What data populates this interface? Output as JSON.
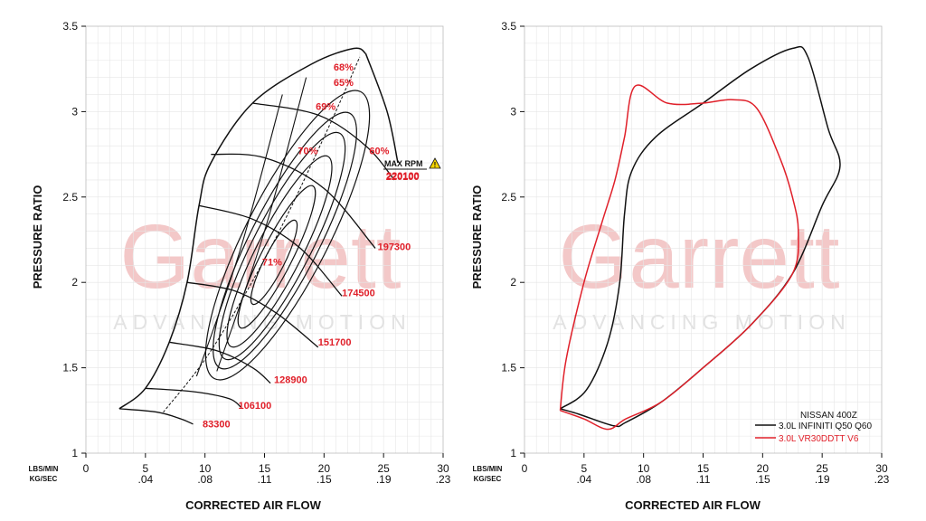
{
  "watermark": {
    "brand": "Garrett",
    "tagline": "ADVANCING MOTION"
  },
  "chart_data": [
    {
      "type": "line",
      "title": "",
      "xlabel": "CORRECTED AIR FLOW",
      "ylabel": "PRESSURE RATIO",
      "x_unit_primary": "LBS/MIN",
      "x_unit_secondary": "KG/SEC",
      "xlim": [
        0,
        30
      ],
      "ylim": [
        1,
        3.5
      ],
      "x_ticks": [
        0,
        5,
        10,
        15,
        20,
        25,
        30
      ],
      "x_ticks_secondary": [
        "",
        ".04",
        ".08",
        ".11",
        ".15",
        ".19",
        ".23"
      ],
      "y_ticks": [
        1,
        1.5,
        2,
        2.5,
        3,
        3.5
      ],
      "y_tick_labels": [
        "1",
        "1.5",
        "2",
        "2.5",
        "3",
        "3.5"
      ],
      "grid": true,
      "surge_line": [
        [
          2.8,
          1.26
        ],
        [
          5.0,
          1.38
        ],
        [
          7.0,
          1.65
        ],
        [
          8.5,
          2.0
        ],
        [
          9.5,
          2.45
        ],
        [
          10.5,
          2.7
        ],
        [
          14.0,
          3.05
        ],
        [
          19.0,
          3.28
        ],
        [
          22.5,
          3.37
        ],
        [
          23.5,
          3.34
        ]
      ],
      "choke_line": [
        [
          23.5,
          3.34
        ],
        [
          25.3,
          3.0
        ],
        [
          26.2,
          2.7
        ]
      ],
      "speed_lines": [
        {
          "label": "83300",
          "points": [
            [
              2.8,
              1.26
            ],
            [
              6.0,
              1.24
            ],
            [
              8.0,
              1.2
            ],
            [
              9.0,
              1.17
            ]
          ],
          "label_at": [
            9.8,
            1.15
          ]
        },
        {
          "label": "106100",
          "points": [
            [
              5.0,
              1.38
            ],
            [
              9.0,
              1.36
            ],
            [
              12.0,
              1.32
            ],
            [
              13.0,
              1.27
            ]
          ],
          "label_at": [
            12.8,
            1.26
          ]
        },
        {
          "label": "128900",
          "points": [
            [
              7.0,
              1.65
            ],
            [
              11.0,
              1.6
            ],
            [
              14.0,
              1.5
            ],
            [
              15.5,
              1.41
            ]
          ],
          "label_at": [
            15.8,
            1.41
          ]
        },
        {
          "label": "151700",
          "points": [
            [
              8.5,
              2.0
            ],
            [
              12.5,
              1.95
            ],
            [
              16.0,
              1.82
            ],
            [
              19.5,
              1.62
            ]
          ],
          "label_at": [
            19.5,
            1.63
          ]
        },
        {
          "label": "174500",
          "points": [
            [
              9.5,
              2.45
            ],
            [
              14.0,
              2.37
            ],
            [
              18.0,
              2.2
            ],
            [
              21.5,
              1.92
            ]
          ],
          "label_at": [
            21.5,
            1.92
          ]
        },
        {
          "label": "197300",
          "points": [
            [
              10.5,
              2.75
            ],
            [
              15.0,
              2.73
            ],
            [
              20.0,
              2.55
            ],
            [
              24.3,
              2.2
            ]
          ],
          "label_at": [
            24.5,
            2.19
          ]
        },
        {
          "label": "220100",
          "points": [
            [
              14.0,
              3.05
            ],
            [
              19.5,
              2.98
            ],
            [
              23.5,
              2.8
            ],
            [
              25.9,
              2.6
            ]
          ],
          "label_at": [
            25.2,
            2.6
          ]
        }
      ],
      "efficiency_islands": [
        {
          "label": "71%",
          "center": [
            18.0,
            1.95
          ],
          "label_at": [
            14.8,
            2.1
          ]
        },
        {
          "label": "70%",
          "center": [
            18.0,
            2.15
          ],
          "label_at": [
            17.8,
            2.75
          ]
        },
        {
          "label": "69%",
          "center": [
            18.0,
            2.3
          ],
          "label_at": [
            19.3,
            3.01
          ]
        },
        {
          "label": "65%",
          "center": [
            18.0,
            2.4
          ],
          "label_at": [
            20.8,
            3.15
          ]
        },
        {
          "label": "68%",
          "center": [
            18.0,
            2.45
          ],
          "label_at": [
            20.8,
            3.24
          ]
        },
        {
          "label": "60%",
          "center": [
            18.0,
            2.5
          ],
          "label_at": [
            23.8,
            2.75
          ]
        }
      ],
      "max_rpm": {
        "label": "MAX RPM",
        "value": "220100"
      }
    },
    {
      "type": "line",
      "title": "",
      "xlabel": "CORRECTED AIR FLOW",
      "ylabel": "PRESSURE RATIO",
      "x_unit_primary": "LBS/MIN",
      "x_unit_secondary": "KG/SEC",
      "xlim": [
        0,
        30
      ],
      "ylim": [
        1,
        3.5
      ],
      "x_ticks": [
        0,
        5,
        10,
        15,
        20,
        25,
        30
      ],
      "x_ticks_secondary": [
        "",
        ".04",
        ".08",
        ".11",
        ".15",
        ".19",
        ".23"
      ],
      "y_ticks": [
        1,
        1.5,
        2,
        2.5,
        3,
        3.5
      ],
      "y_tick_labels": [
        "1",
        "1.5",
        "2",
        "2.5",
        "3",
        "3.5"
      ],
      "grid": true,
      "legend_title": "NISSAN 400Z",
      "legend_position": "bottom-right",
      "series": [
        {
          "name": "3.0L INFINITI Q50 Q60",
          "color": "#111111",
          "points": [
            [
              3.0,
              1.26
            ],
            [
              5.2,
              1.37
            ],
            [
              7.0,
              1.65
            ],
            [
              8.0,
              2.0
            ],
            [
              8.4,
              2.4
            ],
            [
              9.0,
              2.65
            ],
            [
              11.0,
              2.85
            ],
            [
              15.0,
              3.05
            ],
            [
              19.0,
              3.25
            ],
            [
              22.5,
              3.37
            ],
            [
              23.8,
              3.32
            ],
            [
              25.5,
              2.9
            ],
            [
              26.5,
              2.68
            ],
            [
              25.0,
              2.45
            ],
            [
              22.5,
              2.05
            ],
            [
              19.0,
              1.75
            ],
            [
              15.0,
              1.5
            ],
            [
              11.5,
              1.3
            ],
            [
              8.5,
              1.18
            ],
            [
              7.5,
              1.16
            ],
            [
              4.5,
              1.23
            ],
            [
              3.0,
              1.26
            ]
          ]
        },
        {
          "name": "3.0L VR30DDTT V6",
          "color": "#e0202a",
          "points": [
            [
              3.0,
              1.25
            ],
            [
              3.5,
              1.55
            ],
            [
              5.0,
              2.0
            ],
            [
              6.5,
              2.35
            ],
            [
              7.6,
              2.6
            ],
            [
              8.4,
              2.85
            ],
            [
              9.3,
              3.15
            ],
            [
              12.0,
              3.05
            ],
            [
              15.0,
              3.05
            ],
            [
              17.5,
              3.07
            ],
            [
              19.5,
              3.02
            ],
            [
              21.5,
              2.72
            ],
            [
              22.5,
              2.5
            ],
            [
              23.0,
              2.3
            ],
            [
              22.5,
              2.05
            ],
            [
              19.0,
              1.75
            ],
            [
              15.0,
              1.5
            ],
            [
              11.5,
              1.3
            ],
            [
              8.5,
              1.2
            ],
            [
              7.0,
              1.14
            ],
            [
              5.0,
              1.2
            ],
            [
              3.0,
              1.25
            ]
          ]
        }
      ]
    }
  ]
}
